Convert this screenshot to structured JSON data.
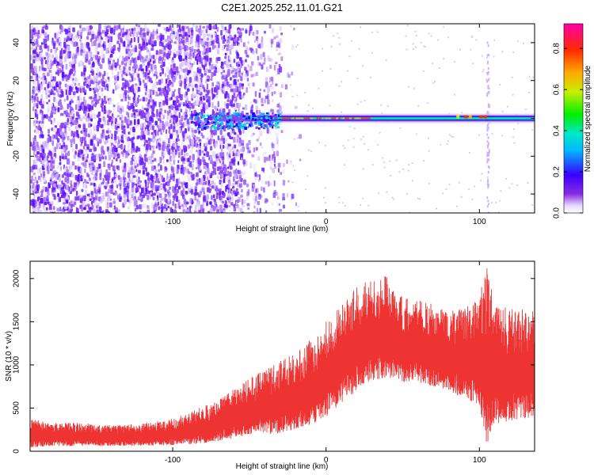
{
  "figure": {
    "title": "C2E1.2025.252.11.01.G21"
  },
  "chart_data": [
    {
      "type": "heatmap",
      "title": "C2E1.2025.252.11.01.G21",
      "xlabel": "Height of straight line (km)",
      "ylabel": "Frequency (Hz)",
      "xlim": [
        -193,
        136
      ],
      "ylim": [
        -50,
        50
      ],
      "xticks": [
        -100,
        0,
        100
      ],
      "yticks": [
        -40,
        -20,
        0,
        20,
        40
      ],
      "colorbar": {
        "label": "Normalized spectral amplitude",
        "range": [
          0,
          0.92
        ],
        "ticks": [
          0.0,
          0.2,
          0.4,
          0.6,
          0.8
        ],
        "colormap": "rainbow (violet→blue→cyan→green→yellow→orange→red→magenta)"
      },
      "features": {
        "noise_region_km": [
          -193,
          -28
        ],
        "signal_start_km": -90,
        "signal_frequency_hz": 0,
        "strong_signal_km": [
          -30,
          125
        ],
        "vertical_streak_km": 105
      }
    },
    {
      "type": "line",
      "title": "",
      "xlabel": "Height of straight line (km)",
      "ylabel": "SNR (10 * v/v)",
      "xlim": [
        -193,
        136
      ],
      "ylim": [
        0,
        2200
      ],
      "xticks": [
        -100,
        0,
        100
      ],
      "yticks": [
        0,
        500,
        1000,
        1500,
        2000
      ],
      "color": "#ee3333",
      "series": [
        {
          "name": "SNR envelope",
          "x": [
            -193,
            -180,
            -160,
            -140,
            -120,
            -100,
            -90,
            -80,
            -70,
            -60,
            -50,
            -40,
            -30,
            -20,
            -10,
            0,
            10,
            20,
            30,
            40,
            50,
            60,
            70,
            80,
            90,
            100,
            105,
            110,
            120,
            136
          ],
          "low": [
            40,
            60,
            60,
            60,
            60,
            70,
            80,
            90,
            120,
            150,
            180,
            200,
            200,
            250,
            300,
            400,
            550,
            700,
            800,
            850,
            800,
            800,
            750,
            700,
            600,
            550,
            50,
            300,
            350,
            400
          ],
          "high": [
            380,
            330,
            330,
            300,
            320,
            380,
            450,
            520,
            600,
            720,
            850,
            950,
            1050,
            1150,
            1300,
            1500,
            1700,
            1900,
            2000,
            2050,
            1800,
            1750,
            1700,
            1650,
            1650,
            1800,
            2200,
            1700,
            1650,
            1650
          ]
        }
      ]
    }
  ]
}
